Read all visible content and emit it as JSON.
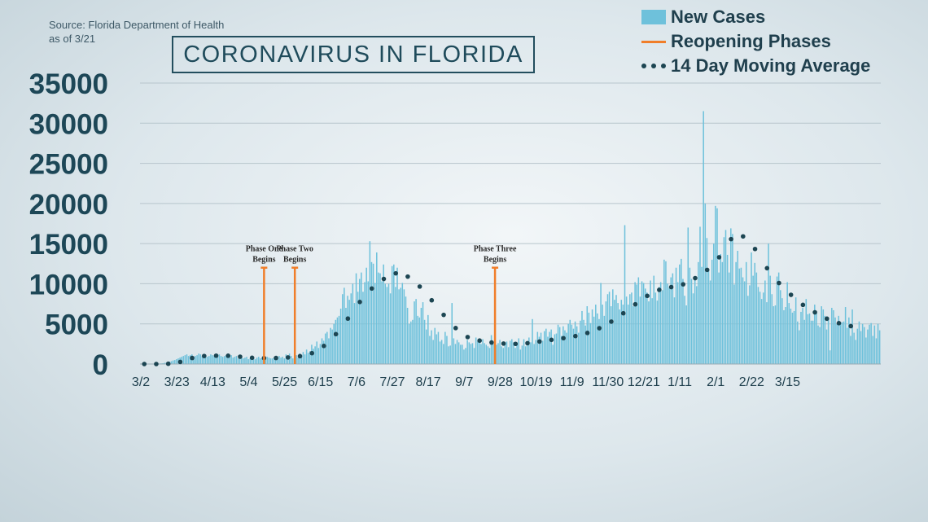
{
  "header": {
    "source_line1": "Source: Florida Department of Health",
    "source_line2": "as of 3/21",
    "title": "CORONAVIRUS IN FLORIDA"
  },
  "legend": {
    "new_cases": "New Cases",
    "reopening": "Reopening Phases",
    "moving_avg": "14 Day Moving Average"
  },
  "colors": {
    "bars": "#6ec1db",
    "phases": "#f07e2a",
    "average": "#1c4552"
  },
  "chart_data": {
    "type": "bar",
    "ylim": [
      0,
      35000
    ],
    "yticks": [
      "35000",
      "30000",
      "25000",
      "20000",
      "15000",
      "10000",
      "5000",
      "0"
    ],
    "xticks": [
      "3/2",
      "3/23",
      "4/13",
      "5/4",
      "5/25",
      "6/15",
      "7/6",
      "7/27",
      "8/17",
      "9/7",
      "9/28",
      "10/19",
      "11/9",
      "11/30",
      "12/21",
      "1/11",
      "2/1",
      "2/22",
      "3/15"
    ],
    "grid": true,
    "series": [
      {
        "name": "New Cases",
        "type": "bar",
        "values": [
          0,
          0,
          0,
          2,
          5,
          8,
          12,
          15,
          20,
          30,
          40,
          60,
          80,
          100,
          150,
          180,
          250,
          300,
          350,
          450,
          500,
          600,
          700,
          800,
          900,
          1000,
          1100,
          1200,
          1000,
          1100,
          1200,
          900,
          1000,
          1100,
          1300,
          1200,
          1000,
          1100,
          1100,
          900,
          1000,
          1200,
          1100,
          1000,
          900,
          1100,
          1200,
          1000,
          900,
          1000,
          1100,
          900,
          1000,
          1100,
          800,
          900,
          1000,
          700,
          800,
          900,
          700,
          800,
          900,
          600,
          700,
          800,
          700,
          600,
          800,
          900,
          700,
          700,
          800,
          700,
          900,
          800,
          700,
          700,
          800,
          600,
          700,
          1000,
          800,
          900,
          700,
          1200,
          600,
          1300,
          1000,
          700,
          900,
          1100,
          800,
          1300,
          1000,
          1500,
          1200,
          1800,
          1400,
          1600,
          2400,
          1900,
          2200,
          2800,
          2000,
          2500,
          3200,
          2900,
          3800,
          4000,
          3200,
          4500,
          4300,
          5000,
          5500,
          5800,
          6000,
          6900,
          8700,
          9500,
          7000,
          8500,
          8000,
          8800,
          10000,
          7600,
          11300,
          9000,
          10600,
          11400,
          9000,
          10200,
          12000,
          10300,
          15300,
          12700,
          12500,
          10100,
          13900,
          11400,
          11300,
          10300,
          12400,
          10000,
          9600,
          10000,
          8800,
          12200,
          12400,
          9600,
          12000,
          9300,
          9500,
          10100,
          9300,
          8400,
          7000,
          5000,
          5300,
          5500,
          7800,
          8100,
          6000,
          5800,
          7000,
          7700,
          5500,
          4300,
          6100,
          3500,
          4200,
          3000,
          4500,
          3700,
          4000,
          2800,
          3000,
          2500,
          4000,
          3500,
          2200,
          2300,
          7600,
          3200,
          2500,
          3000,
          2700,
          2400,
          2400,
          1800,
          2000,
          3000,
          2700,
          2500,
          2600,
          2000,
          3300,
          2800,
          3200,
          2500,
          3100,
          2600,
          2400,
          2200,
          2000,
          3600,
          2700,
          3000,
          2400,
          2600,
          3000,
          2200,
          2000,
          2500,
          2800,
          2100,
          2900,
          3100,
          2700,
          2000,
          2600,
          3200,
          1800,
          2300,
          3100,
          2200,
          2700,
          3300,
          2700,
          5600,
          2500,
          3000,
          4000,
          3400,
          3900,
          2900,
          4100,
          4400,
          3400,
          4000,
          4300,
          2400,
          3700,
          3800,
          4900,
          4600,
          3500,
          4700,
          4200,
          3900,
          5000,
          5500,
          4900,
          4400,
          5300,
          4700,
          3900,
          5400,
          6600,
          5500,
          4800,
          7200,
          6400,
          5100,
          6800,
          5900,
          7400,
          6300,
          5600,
          10100,
          7400,
          6000,
          7800,
          8700,
          9000,
          7200,
          9300,
          8000,
          8600,
          7600,
          6800,
          8000,
          7400,
          17300,
          8400,
          7400,
          8700,
          8900,
          7200,
          10200,
          9900,
          10800,
          8400,
          10300,
          10100,
          9400,
          8900,
          7800,
          10400,
          8200,
          11000,
          8900,
          7900,
          9600,
          10200,
          9200,
          13000,
          12800,
          10000,
          9500,
          10800,
          11300,
          8300,
          12000,
          10200,
          12400,
          13100,
          10600,
          8500,
          7300,
          17000,
          12000,
          10600,
          8800,
          10700,
          9700,
          12700,
          17100,
          12100,
          31500,
          20000,
          15700,
          11600,
          10400,
          13000,
          15000,
          19700,
          19400,
          11400,
          13700,
          12700,
          15800,
          16700,
          13600,
          11400,
          16900,
          16200,
          9900,
          12700,
          14100,
          11900,
          12000,
          10800,
          10300,
          12700,
          8500,
          9800,
          13900,
          11000,
          12600,
          11400,
          9600,
          9000,
          8100,
          8900,
          10400,
          7700,
          15000,
          11000,
          8700,
          7200,
          7300,
          10900,
          11400,
          9200,
          8200,
          6700,
          7100,
          10200,
          7600,
          6900,
          6400,
          6600,
          8300,
          5300,
          4200,
          6500,
          7000,
          5500,
          8100,
          6200,
          6300,
          5400,
          5400,
          7400,
          6400,
          4800,
          4600,
          7200,
          6800,
          6000,
          4300,
          5800,
          1700,
          7000,
          6700,
          5800,
          5000,
          6000,
          5200,
          5200,
          5300,
          7100,
          4500,
          5800,
          3500,
          6800,
          3900,
          3000,
          4400,
          5300,
          4100,
          5000,
          4600,
          3300,
          4300,
          4900,
          5100,
          3500,
          4800,
          3200,
          5000,
          4200
        ]
      },
      {
        "name": "14 Day Moving Average",
        "type": "dots",
        "values": [
          0,
          0,
          0,
          0,
          0,
          0,
          0,
          0,
          0,
          1,
          2,
          4,
          6,
          8,
          14,
          20,
          30,
          40,
          60,
          80,
          110,
          150,
          200,
          260,
          320,
          400,
          480,
          560,
          630,
          700,
          750,
          800,
          850,
          900,
          930,
          950,
          980,
          1000,
          1010,
          1020,
          1030,
          1040,
          1040,
          1040,
          1040,
          1040,
          1040,
          1040,
          1040,
          1040,
          1040,
          1030,
          1020,
          1010,
          990,
          970,
          950,
          930,
          910,
          890,
          870,
          850,
          830,
          810,
          790,
          780,
          770,
          760,
          750,
          750,
          740,
          740,
          740,
          740,
          740,
          740,
          740,
          740,
          750,
          750,
          760,
          770,
          780,
          790,
          800,
          810,
          820,
          840,
          860,
          880,
          900,
          920,
          950,
          980,
          1010,
          1050,
          1090,
          1140,
          1200,
          1270,
          1350,
          1440,
          1540,
          1650,
          1780,
          1920,
          2080,
          2250,
          2430,
          2620,
          2820,
          3030,
          3250,
          3480,
          3720,
          3970,
          4230,
          4500,
          4780,
          5070,
          5360,
          5660,
          5960,
          6260,
          6560,
          6860,
          7160,
          7450,
          7730,
          8000,
          8260,
          8510,
          8750,
          8980,
          9200,
          9410,
          9610,
          9800,
          9980,
          10150,
          10310,
          10460,
          10600,
          10730,
          10850,
          10960,
          11060,
          11150,
          11230,
          11300,
          11310,
          11290,
          11250,
          11190,
          11110,
          11010,
          10890,
          10750,
          10600,
          10430,
          10250,
          10060,
          9860,
          9650,
          9430,
          9200,
          8960,
          8710,
          8460,
          8200,
          7940,
          7680,
          7420,
          7160,
          6900,
          6640,
          6380,
          6120,
          5870,
          5620,
          5380,
          5140,
          4910,
          4690,
          4480,
          4280,
          4090,
          3910,
          3740,
          3600,
          3470,
          3360,
          3270,
          3190,
          3120,
          3060,
          3010,
          2960,
          2920,
          2880,
          2840,
          2800,
          2770,
          2740,
          2710,
          2680,
          2650,
          2630,
          2610,
          2590,
          2570,
          2560,
          2550,
          2540,
          2530,
          2520,
          2520,
          2510,
          2510,
          2510,
          2510,
          2520,
          2530,
          2540,
          2560,
          2580,
          2600,
          2620,
          2650,
          2680,
          2710,
          2740,
          2770,
          2800,
          2830,
          2860,
          2890,
          2920,
          2950,
          2980,
          3010,
          3040,
          3070,
          3100,
          3130,
          3160,
          3190,
          3220,
          3250,
          3280,
          3320,
          3360,
          3400,
          3440,
          3480,
          3520,
          3570,
          3620,
          3680,
          3740,
          3800,
          3870,
          3940,
          4020,
          4100,
          4180,
          4270,
          4360,
          4460,
          4560,
          4670,
          4780,
          4900,
          5020,
          5150,
          5280,
          5420,
          5560,
          5710,
          5860,
          6010,
          6160,
          6320,
          6480,
          6640,
          6800,
          6960,
          7120,
          7280,
          7440,
          7600,
          7760,
          7910,
          8060,
          8210,
          8350,
          8490,
          8620,
          8740,
          8860,
          8970,
          9070,
          9160,
          9240,
          9310,
          9370,
          9420,
          9460,
          9500,
          9540,
          9580,
          9620,
          9660,
          9700,
          9750,
          9800,
          9860,
          9930,
          10010,
          10100,
          10200,
          10310,
          10430,
          10560,
          10700,
          10840,
          10980,
          11120,
          11260,
          11400,
          11560,
          11730,
          11910,
          12100,
          12300,
          12510,
          12740,
          13000,
          13300,
          13640,
          14000,
          14370,
          14720,
          15050,
          15330,
          15560,
          15740,
          15870,
          15950,
          15990,
          16000,
          15970,
          15900,
          15780,
          15620,
          15420,
          15190,
          14930,
          14640,
          14330,
          14000,
          13660,
          13310,
          12960,
          12610,
          12270,
          11940,
          11620,
          11310,
          11020,
          10760,
          10520,
          10300,
          10090,
          9880,
          9670,
          9460,
          9250,
          9040,
          8830,
          8620,
          8420,
          8220,
          8030,
          7850,
          7680,
          7520,
          7370,
          7230,
          7090,
          6960,
          6830,
          6700,
          6570,
          6440,
          6310,
          6190,
          6070,
          5960,
          5850,
          5750,
          5650,
          5560,
          5470,
          5390,
          5310,
          5230,
          5160,
          5090,
          5020,
          4960,
          4900,
          4850,
          4800,
          4760,
          4720,
          4690,
          4660,
          4640,
          4620,
          4600
        ]
      }
    ],
    "phases": [
      {
        "label_line1": "Phase One",
        "label_line2": "Begins",
        "day": 72,
        "value": 12000
      },
      {
        "label_line1": "Phase Two",
        "label_line2": "Begins",
        "day": 90,
        "value": 12000
      },
      {
        "label_line1": "Phase Three",
        "label_line2": "Begins",
        "day": 207,
        "value": 12000
      }
    ]
  }
}
